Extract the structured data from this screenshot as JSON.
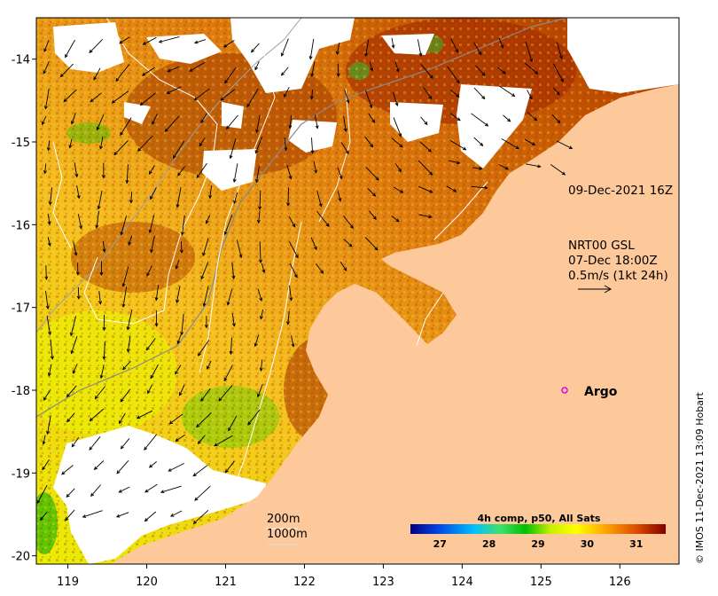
{
  "map": {
    "x_ticks": [
      "119",
      "120",
      "121",
      "122",
      "123",
      "124",
      "125",
      "126"
    ],
    "y_ticks": [
      "-14",
      "-15",
      "-16",
      "-17",
      "-18",
      "-19",
      "-20"
    ],
    "x_range": [
      118.6,
      126.75
    ],
    "y_range": [
      -20.1,
      -13.5
    ]
  },
  "annotations": {
    "image_time": "09-Dec-2021 16Z",
    "current_source": "NRT00 GSL",
    "current_time": "07-Dec 18:00Z",
    "current_scale": "0.5m/s (1kt 24h)",
    "argo_label": "Argo",
    "depth_200": "200m",
    "depth_1000": "1000m",
    "credit": "© IMOS 11-Dec-2021 13:09 Hobart"
  },
  "colorbar": {
    "title": "4h comp, p50, All Sats",
    "ticks": [
      "27",
      "28",
      "29",
      "30",
      "31"
    ],
    "range": [
      26.4,
      31.6
    ],
    "stops": [
      "#00008b",
      "#0050e0",
      "#00c8ff",
      "#40d890",
      "#00c000",
      "#c8e800",
      "#ffff00",
      "#ffa500",
      "#e06000",
      "#a01800",
      "#800000"
    ]
  },
  "argo": {
    "lon": 125.3,
    "lat": -18.0,
    "color": "#e000e0"
  },
  "colors": {
    "land": "#fdc99b",
    "cloud": "#ffffff",
    "contour": "#ffffff",
    "isobath": "#888888"
  }
}
